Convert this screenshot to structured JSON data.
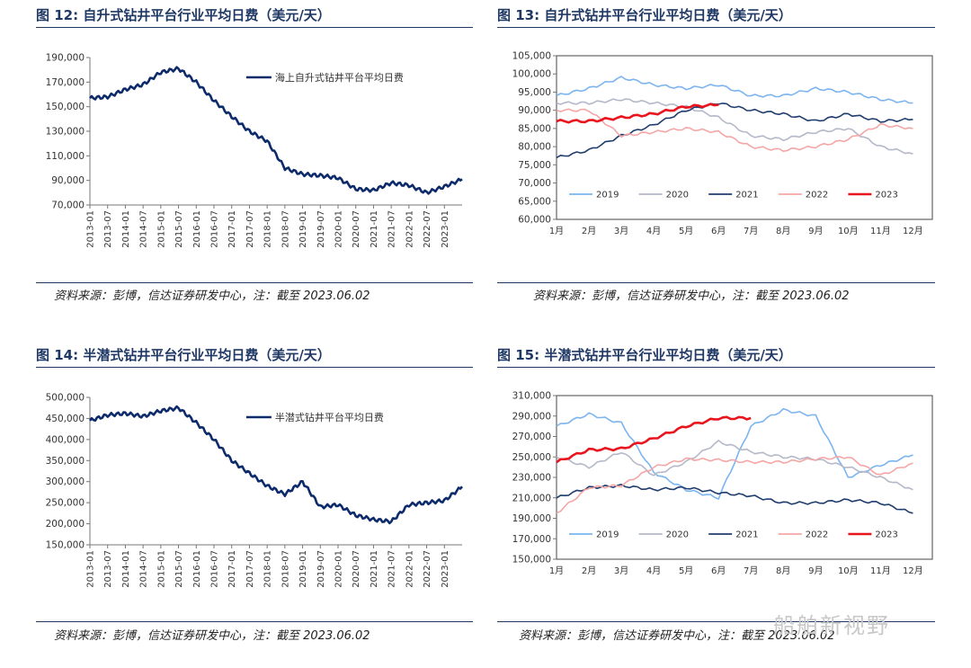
{
  "panels": [
    {
      "title": "图 12:  自升式钻井平台行业平均日费（美元/天）",
      "source_text": "资料来源：彭博，信达证券研发中心，注：截至 2023.06.02"
    },
    {
      "title": "图 13:  自升式钻井平台行业平均日费（美元/天）",
      "source_text": "资料来源：彭博，信达证券研发中心，注：截至 2023.06.02"
    },
    {
      "title": "图 14:  半潜式钻井平台行业平均日费（美元/天）",
      "source_text": "资料来源：彭博，信达证券研发中心，注：截至 2023.06.02"
    },
    {
      "title": "图 15:  半潜式钻井平台行业平均日费（美元/天）",
      "source_text": "资料来源：彭博，信达证券研发中心，注：截至 2023.06.02"
    }
  ],
  "watermark": "船舶新视野",
  "colors": {
    "title": "#1f3864",
    "navy": "#0d2b6b",
    "y2019": "#7cb4f0",
    "y2020": "#b4b8c8",
    "y2021": "#1f3c6e",
    "y2022": "#f4a6a6",
    "y2023": "#e8141e"
  },
  "chart_data": [
    {
      "type": "line",
      "title": "",
      "x": [
        "2013-01",
        "2013-07",
        "2014-01",
        "2014-07",
        "2015-01",
        "2015-07",
        "2016-01",
        "2016-07",
        "2017-01",
        "2017-07",
        "2018-01",
        "2018-07",
        "2019-01",
        "2019-07",
        "2020-01",
        "2020-07",
        "2021-01",
        "2021-07",
        "2022-01",
        "2022-07",
        "2023-01",
        "2023-06"
      ],
      "x_tick_labels": [
        "2013-01",
        "2013-07",
        "2014-01",
        "2014-07",
        "2015-01",
        "2015-07",
        "2016-01",
        "2016-07",
        "2017-01",
        "2017-07",
        "2018-01",
        "2018-07",
        "2019-01",
        "2019-07",
        "2020-01",
        "2020-07",
        "2021-01",
        "2021-07",
        "2022-01",
        "2022-07",
        "2023-01"
      ],
      "y_ticks": [
        70000,
        90000,
        110000,
        130000,
        150000,
        170000,
        190000
      ],
      "y_tick_labels": [
        "70,000",
        "90,000",
        "110,000",
        "130,000",
        "150,000",
        "170,000",
        "190,000"
      ],
      "ylim": [
        70000,
        190000
      ],
      "series": [
        {
          "name": "海上自升式钻井平台平均日费",
          "color": "#0d2b6b",
          "values": [
            157000,
            158000,
            164000,
            168000,
            178000,
            181000,
            170000,
            155000,
            142000,
            130000,
            122000,
            100000,
            95000,
            94000,
            92000,
            83000,
            82000,
            88000,
            86000,
            80000,
            85000,
            91000
          ]
        }
      ],
      "legend": "top-right"
    },
    {
      "type": "line",
      "title": "",
      "x": [
        "1月",
        "2月",
        "3月",
        "4月",
        "5月",
        "6月",
        "7月",
        "8月",
        "9月",
        "10月",
        "11月",
        "12月"
      ],
      "y_ticks": [
        60000,
        65000,
        70000,
        75000,
        80000,
        85000,
        90000,
        95000,
        100000,
        105000
      ],
      "y_tick_labels": [
        "60,000",
        "65,000",
        "70,000",
        "75,000",
        "80,000",
        "85,000",
        "90,000",
        "95,000",
        "100,000",
        "105,000"
      ],
      "ylim": [
        60000,
        105000
      ],
      "series": [
        {
          "name": "2019",
          "color": "#7cb4f0",
          "values": [
            94000,
            96000,
            99000,
            97000,
            96000,
            97000,
            94000,
            94000,
            96000,
            95000,
            93000,
            92000
          ]
        },
        {
          "name": "2020",
          "color": "#b4b8c8",
          "values": [
            92000,
            92000,
            93000,
            92000,
            91000,
            88000,
            83000,
            82000,
            84000,
            85000,
            80000,
            78000
          ]
        },
        {
          "name": "2021",
          "color": "#1f3c6e",
          "values": [
            77000,
            79000,
            83000,
            86000,
            90000,
            92000,
            90000,
            89000,
            87000,
            89000,
            87000,
            87500
          ]
        },
        {
          "name": "2022",
          "color": "#f4a6a6",
          "values": [
            90000,
            90000,
            83000,
            84000,
            85000,
            84000,
            80000,
            79000,
            80000,
            82000,
            86000,
            85000
          ]
        },
        {
          "name": "2023",
          "color": "#e8141e",
          "values": [
            87000,
            87000,
            88000,
            89000,
            91000,
            91500,
            null,
            null,
            null,
            null,
            null,
            null
          ]
        }
      ],
      "legend": "bottom"
    },
    {
      "type": "line",
      "title": "",
      "x": [
        "2013-01",
        "2013-07",
        "2014-01",
        "2014-07",
        "2015-01",
        "2015-07",
        "2016-01",
        "2016-07",
        "2017-01",
        "2017-07",
        "2018-01",
        "2018-07",
        "2019-01",
        "2019-07",
        "2020-01",
        "2020-07",
        "2021-01",
        "2021-07",
        "2022-01",
        "2022-07",
        "2023-01",
        "2023-06"
      ],
      "x_tick_labels": [
        "2013-01",
        "2013-07",
        "2014-01",
        "2014-07",
        "2015-01",
        "2015-07",
        "2016-01",
        "2016-07",
        "2017-01",
        "2017-07",
        "2018-01",
        "2018-07",
        "2019-01",
        "2019-07",
        "2020-01",
        "2020-07",
        "2021-01",
        "2021-07",
        "2022-01",
        "2022-07",
        "2023-01"
      ],
      "y_ticks": [
        150000,
        200000,
        250000,
        300000,
        350000,
        400000,
        450000,
        500000
      ],
      "y_tick_labels": [
        "150,000",
        "200,000",
        "250,000",
        "300,000",
        "350,000",
        "400,000",
        "450,000",
        "500,000"
      ],
      "ylim": [
        150000,
        500000
      ],
      "series": [
        {
          "name": "半潜式钻井平台平均日费",
          "color": "#0d2b6b",
          "values": [
            445000,
            458000,
            462000,
            455000,
            468000,
            475000,
            440000,
            400000,
            350000,
            320000,
            290000,
            270000,
            300000,
            240000,
            245000,
            220000,
            210000,
            205000,
            245000,
            250000,
            255000,
            288000
          ]
        }
      ],
      "legend": "top-right"
    },
    {
      "type": "line",
      "title": "",
      "x": [
        "1月",
        "2月",
        "3月",
        "4月",
        "5月",
        "6月",
        "7月",
        "8月",
        "9月",
        "10月",
        "11月",
        "12月"
      ],
      "y_ticks": [
        150000,
        170000,
        190000,
        210000,
        230000,
        250000,
        270000,
        290000,
        310000
      ],
      "y_tick_labels": [
        "150,000",
        "170,000",
        "190,000",
        "210,000",
        "230,000",
        "250,000",
        "270,000",
        "290,000",
        "310,000"
      ],
      "ylim": [
        150000,
        310000
      ],
      "series": [
        {
          "name": "2019",
          "color": "#7cb4f0",
          "values": [
            280000,
            292000,
            283000,
            235000,
            218000,
            210000,
            280000,
            296000,
            290000,
            230000,
            242000,
            252000
          ]
        },
        {
          "name": "2020",
          "color": "#b4b8c8",
          "values": [
            250000,
            240000,
            255000,
            232000,
            245000,
            265000,
            255000,
            250000,
            248000,
            240000,
            230000,
            218000
          ]
        },
        {
          "name": "2021",
          "color": "#1f3c6e",
          "values": [
            210000,
            220000,
            222000,
            218000,
            220000,
            215000,
            212000,
            205000,
            205000,
            208000,
            205000,
            195000
          ]
        },
        {
          "name": "2022",
          "color": "#f4a6a6",
          "values": [
            195000,
            220000,
            222000,
            240000,
            248000,
            247000,
            245000,
            245000,
            248000,
            250000,
            232000,
            244000
          ]
        },
        {
          "name": "2023",
          "color": "#e8141e",
          "values": [
            245000,
            257000,
            258000,
            268000,
            280000,
            288000,
            288000,
            null,
            null,
            null,
            null,
            null
          ]
        }
      ],
      "legend": "bottom"
    }
  ]
}
